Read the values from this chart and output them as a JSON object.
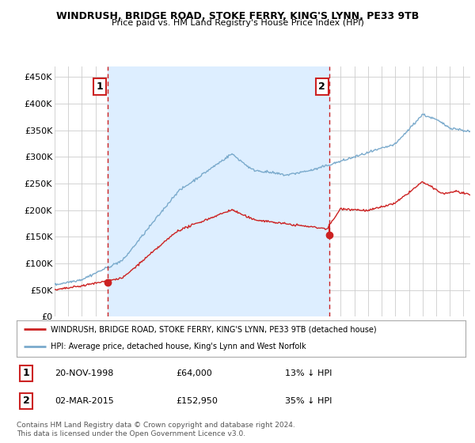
{
  "title": "WINDRUSH, BRIDGE ROAD, STOKE FERRY, KING'S LYNN, PE33 9TB",
  "subtitle": "Price paid vs. HM Land Registry's House Price Index (HPI)",
  "legend_line1": "WINDRUSH, BRIDGE ROAD, STOKE FERRY, KING'S LYNN, PE33 9TB (detached house)",
  "legend_line2": "HPI: Average price, detached house, King's Lynn and West Norfolk",
  "sale1_date": "20-NOV-1998",
  "sale1_price": "£64,000",
  "sale1_pct": "13% ↓ HPI",
  "sale2_date": "02-MAR-2015",
  "sale2_price": "£152,950",
  "sale2_pct": "35% ↓ HPI",
  "footer": "Contains HM Land Registry data © Crown copyright and database right 2024.\nThis data is licensed under the Open Government Licence v3.0.",
  "red_color": "#cc2222",
  "blue_color": "#7aaacc",
  "shade_color": "#ddeeff",
  "bg_color": "#ffffff",
  "grid_color": "#cccccc",
  "ylim": [
    0,
    470000
  ],
  "yticks": [
    0,
    50000,
    100000,
    150000,
    200000,
    250000,
    300000,
    350000,
    400000,
    450000
  ],
  "ytick_labels": [
    "£0",
    "£50K",
    "£100K",
    "£150K",
    "£200K",
    "£250K",
    "£300K",
    "£350K",
    "£400K",
    "£450K"
  ],
  "sale1_x_year": 1998.88,
  "sale1_y": 64000,
  "sale2_x_year": 2015.17,
  "sale2_y": 152950,
  "xmin": 1995,
  "xmax": 2025.5
}
